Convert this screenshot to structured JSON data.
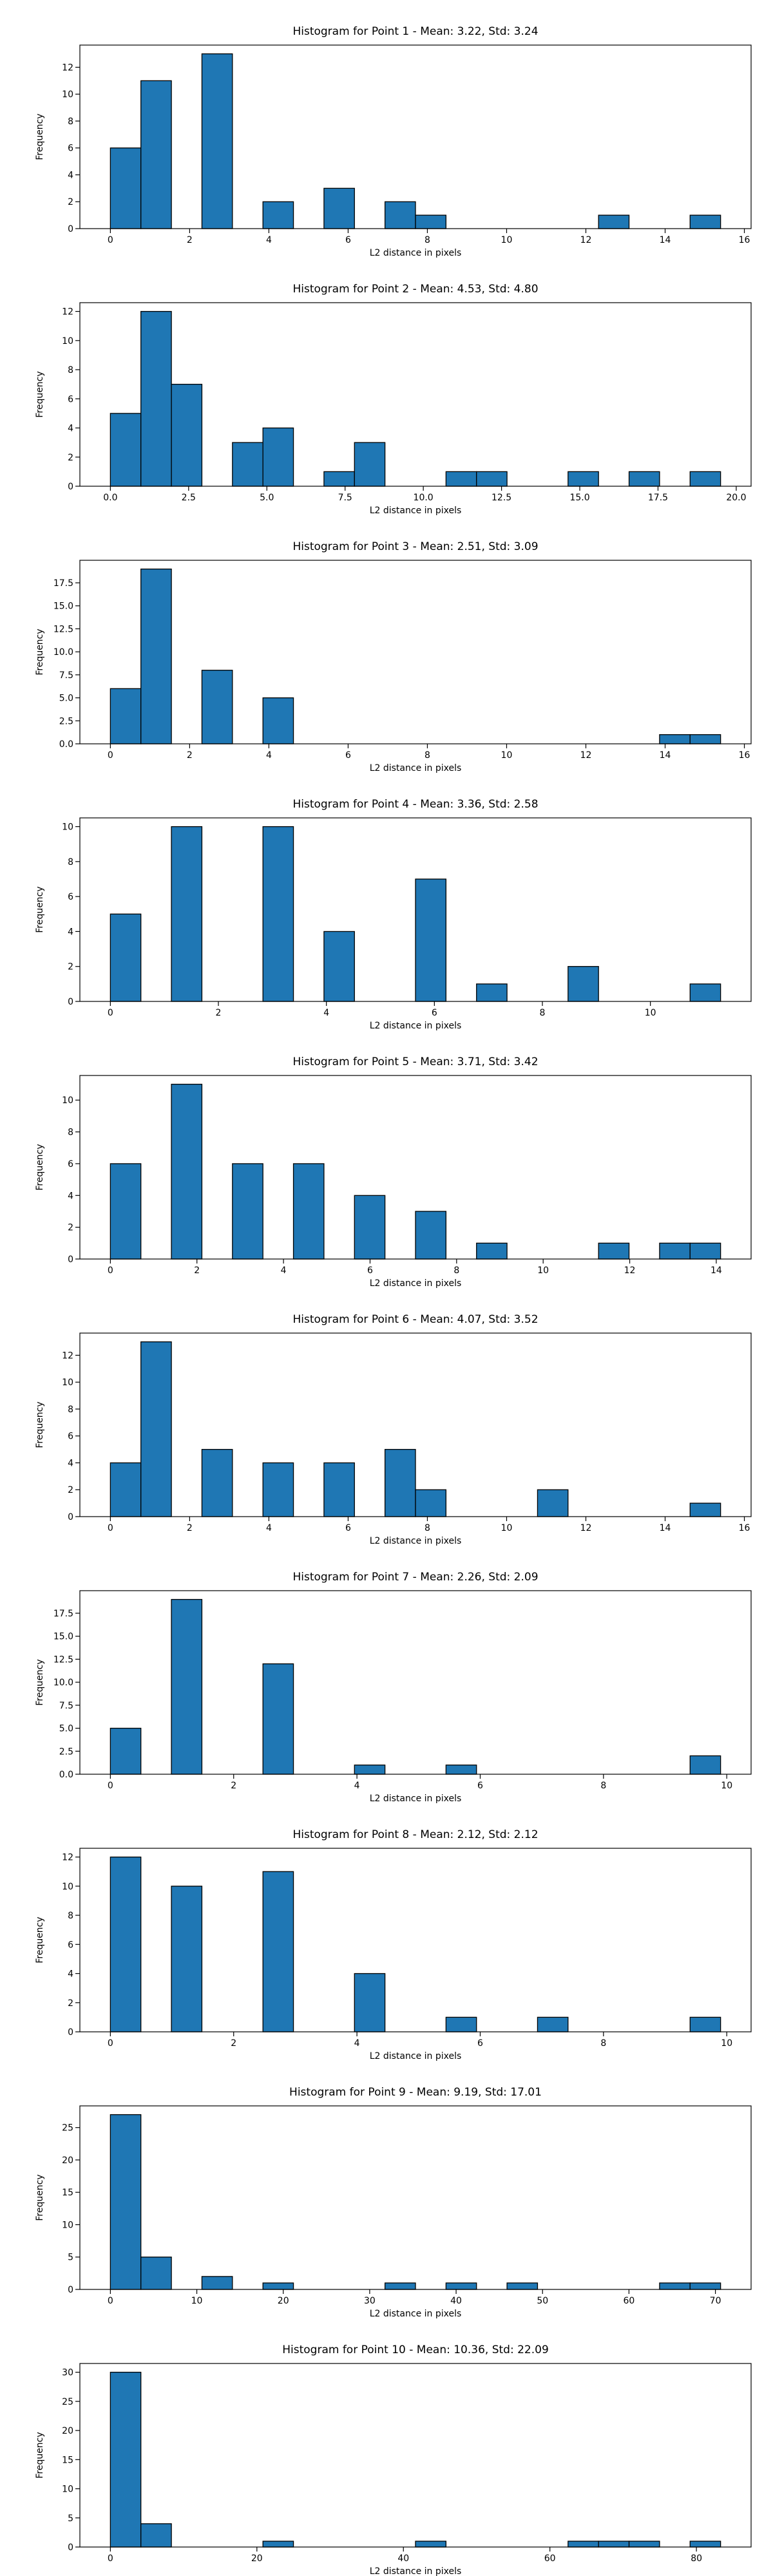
{
  "chart_data": [
    {
      "type": "histogram",
      "title": "Histogram for Point 1 - Mean: 3.22, Std: 3.24",
      "x_label": "L2 distance in pixels",
      "y_label": "Frequency",
      "color": "#1f77b4",
      "bins": [
        0,
        0.77,
        1.54,
        2.31,
        3.08,
        3.85,
        4.62,
        5.39,
        6.16,
        6.93,
        7.7,
        8.47,
        9.24,
        10.01,
        10.78,
        11.55,
        12.32,
        13.09,
        13.86,
        14.63,
        15.4
      ],
      "values": [
        6,
        11,
        0,
        13,
        0,
        2,
        0,
        3,
        0,
        2,
        1,
        0,
        0,
        0,
        0,
        0,
        1,
        0,
        0,
        1
      ],
      "xlim": [
        -0.77,
        16.17
      ],
      "xticks": [
        0,
        2,
        4,
        6,
        8,
        10,
        12,
        14,
        16
      ],
      "ylim": [
        0,
        13.65
      ],
      "yticks": [
        0,
        2,
        4,
        6,
        8,
        10,
        12
      ]
    },
    {
      "type": "histogram",
      "title": "Histogram for Point 2 - Mean: 4.53, Std: 4.80",
      "x_label": "L2 distance in pixels",
      "y_label": "Frequency",
      "color": "#1f77b4",
      "bins": [
        0,
        0.975,
        1.95,
        2.925,
        3.9,
        4.875,
        5.85,
        6.825,
        7.8,
        8.775,
        9.75,
        10.725,
        11.7,
        12.675,
        13.65,
        14.625,
        15.6,
        16.575,
        17.55,
        18.525,
        19.5
      ],
      "values": [
        5,
        12,
        7,
        0,
        3,
        4,
        0,
        1,
        3,
        0,
        0,
        1,
        1,
        0,
        0,
        1,
        0,
        1,
        0,
        1
      ],
      "xlim": [
        -0.975,
        20.475
      ],
      "xticks": [
        {
          "value": 0,
          "label": "0.0"
        },
        {
          "value": 2.5,
          "label": "2.5"
        },
        {
          "value": 5,
          "label": "5.0"
        },
        {
          "value": 7.5,
          "label": "7.5"
        },
        {
          "value": 10,
          "label": "10.0"
        },
        {
          "value": 12.5,
          "label": "12.5"
        },
        {
          "value": 15,
          "label": "15.0"
        },
        {
          "value": 17.5,
          "label": "17.5"
        },
        {
          "value": 20,
          "label": "20.0"
        }
      ],
      "ylim": [
        0,
        12.6
      ],
      "yticks": [
        0,
        2,
        4,
        6,
        8,
        10,
        12
      ]
    },
    {
      "type": "histogram",
      "title": "Histogram for Point 3 - Mean: 2.51, Std: 3.09",
      "x_label": "L2 distance in pixels",
      "y_label": "Frequency",
      "color": "#1f77b4",
      "bins": [
        0,
        0.77,
        1.54,
        2.31,
        3.08,
        3.85,
        4.62,
        5.39,
        6.16,
        6.93,
        7.7,
        8.47,
        9.24,
        10.01,
        10.78,
        11.55,
        12.32,
        13.09,
        13.86,
        14.63,
        15.4
      ],
      "values": [
        6,
        19,
        0,
        8,
        0,
        5,
        0,
        0,
        0,
        0,
        0,
        0,
        0,
        0,
        0,
        0,
        0,
        0,
        1,
        1
      ],
      "xlim": [
        -0.77,
        16.17
      ],
      "xticks": [
        0,
        2,
        4,
        6,
        8,
        10,
        12,
        14,
        16
      ],
      "ylim": [
        0,
        19.95
      ],
      "yticks": [
        {
          "value": 0,
          "label": "0.0"
        },
        {
          "value": 2.5,
          "label": "2.5"
        },
        {
          "value": 5,
          "label": "5.0"
        },
        {
          "value": 7.5,
          "label": "7.5"
        },
        {
          "value": 10,
          "label": "10.0"
        },
        {
          "value": 12.5,
          "label": "12.5"
        },
        {
          "value": 15,
          "label": "15.0"
        },
        {
          "value": 17.5,
          "label": "17.5"
        }
      ]
    },
    {
      "type": "histogram",
      "title": "Histogram for Point 4 - Mean: 3.36, Std: 2.58",
      "x_label": "L2 distance in pixels",
      "y_label": "Frequency",
      "color": "#1f77b4",
      "bins": [
        0,
        0.565,
        1.13,
        1.695,
        2.26,
        2.825,
        3.39,
        3.955,
        4.52,
        5.085,
        5.65,
        6.215,
        6.78,
        7.345,
        7.91,
        8.475,
        9.04,
        9.605,
        10.17,
        10.735,
        11.3
      ],
      "values": [
        5,
        0,
        10,
        0,
        0,
        10,
        0,
        4,
        0,
        0,
        7,
        0,
        1,
        0,
        0,
        2,
        0,
        0,
        0,
        1
      ],
      "xlim": [
        -0.565,
        11.865
      ],
      "xticks": [
        0,
        2,
        4,
        6,
        8,
        10
      ],
      "ylim": [
        0,
        10.5
      ],
      "yticks": [
        0,
        2,
        4,
        6,
        8,
        10
      ]
    },
    {
      "type": "histogram",
      "title": "Histogram for Point 5 - Mean: 3.71, Std: 3.42",
      "x_label": "L2 distance in pixels",
      "y_label": "Frequency",
      "color": "#1f77b4",
      "bins": [
        0,
        0.705,
        1.41,
        2.115,
        2.82,
        3.525,
        4.23,
        4.935,
        5.64,
        6.345,
        7.05,
        7.755,
        8.46,
        9.165,
        9.87,
        10.575,
        11.28,
        11.985,
        12.69,
        13.395,
        14.1
      ],
      "values": [
        6,
        0,
        11,
        0,
        6,
        0,
        6,
        0,
        4,
        0,
        3,
        0,
        1,
        0,
        0,
        0,
        1,
        0,
        1,
        1
      ],
      "xlim": [
        -0.705,
        14.805
      ],
      "xticks": [
        0,
        2,
        4,
        6,
        8,
        10,
        12,
        14
      ],
      "ylim": [
        0,
        11.55
      ],
      "yticks": [
        0,
        2,
        4,
        6,
        8,
        10
      ]
    },
    {
      "type": "histogram",
      "title": "Histogram for Point 6 - Mean: 4.07, Std: 3.52",
      "x_label": "L2 distance in pixels",
      "y_label": "Frequency",
      "color": "#1f77b4",
      "bins": [
        0,
        0.77,
        1.54,
        2.31,
        3.08,
        3.85,
        4.62,
        5.39,
        6.16,
        6.93,
        7.7,
        8.47,
        9.24,
        10.01,
        10.78,
        11.55,
        12.32,
        13.09,
        13.86,
        14.63,
        15.4
      ],
      "values": [
        4,
        13,
        0,
        5,
        0,
        4,
        0,
        4,
        0,
        5,
        2,
        0,
        0,
        0,
        2,
        0,
        0,
        0,
        0,
        1
      ],
      "xlim": [
        -0.77,
        16.17
      ],
      "xticks": [
        0,
        2,
        4,
        6,
        8,
        10,
        12,
        14,
        16
      ],
      "ylim": [
        0,
        13.65
      ],
      "yticks": [
        0,
        2,
        4,
        6,
        8,
        10,
        12
      ]
    },
    {
      "type": "histogram",
      "title": "Histogram for Point 7 - Mean: 2.26, Std: 2.09",
      "x_label": "L2 distance in pixels",
      "y_label": "Frequency",
      "color": "#1f77b4",
      "bins": [
        0,
        0.495,
        0.99,
        1.485,
        1.98,
        2.475,
        2.97,
        3.465,
        3.96,
        4.455,
        4.95,
        5.445,
        5.94,
        6.435,
        6.93,
        7.425,
        7.92,
        8.415,
        8.91,
        9.405,
        9.9
      ],
      "values": [
        5,
        0,
        19,
        0,
        0,
        12,
        0,
        0,
        1,
        0,
        0,
        1,
        0,
        0,
        0,
        0,
        0,
        0,
        0,
        2
      ],
      "xlim": [
        -0.495,
        10.395
      ],
      "xticks": [
        0,
        2,
        4,
        6,
        8,
        10
      ],
      "ylim": [
        0,
        19.95
      ],
      "yticks": [
        {
          "value": 0,
          "label": "0.0"
        },
        {
          "value": 2.5,
          "label": "2.5"
        },
        {
          "value": 5,
          "label": "5.0"
        },
        {
          "value": 7.5,
          "label": "7.5"
        },
        {
          "value": 10,
          "label": "10.0"
        },
        {
          "value": 12.5,
          "label": "12.5"
        },
        {
          "value": 15,
          "label": "15.0"
        },
        {
          "value": 17.5,
          "label": "17.5"
        }
      ]
    },
    {
      "type": "histogram",
      "title": "Histogram for Point 8 - Mean: 2.12, Std: 2.12",
      "x_label": "L2 distance in pixels",
      "y_label": "Frequency",
      "color": "#1f77b4",
      "bins": [
        0,
        0.495,
        0.99,
        1.485,
        1.98,
        2.475,
        2.97,
        3.465,
        3.96,
        4.455,
        4.95,
        5.445,
        5.94,
        6.435,
        6.93,
        7.425,
        7.92,
        8.415,
        8.91,
        9.405,
        9.9
      ],
      "values": [
        12,
        0,
        10,
        0,
        0,
        11,
        0,
        0,
        4,
        0,
        0,
        1,
        0,
        0,
        1,
        0,
        0,
        0,
        0,
        1
      ],
      "xlim": [
        -0.495,
        10.395
      ],
      "xticks": [
        0,
        2,
        4,
        6,
        8,
        10
      ],
      "ylim": [
        0,
        12.6
      ],
      "yticks": [
        0,
        2,
        4,
        6,
        8,
        10,
        12
      ]
    },
    {
      "type": "histogram",
      "title": "Histogram for Point 9 - Mean: 9.19, Std: 17.01",
      "x_label": "L2 distance in pixels",
      "y_label": "Frequency",
      "color": "#1f77b4",
      "bins": [
        0,
        3.53,
        7.06,
        10.59,
        14.12,
        17.65,
        21.18,
        24.71,
        28.24,
        31.77,
        35.3,
        38.83,
        42.36,
        45.89,
        49.42,
        52.95,
        56.48,
        60.01,
        63.54,
        67.07,
        70.6
      ],
      "values": [
        27,
        5,
        0,
        2,
        0,
        1,
        0,
        0,
        0,
        1,
        0,
        1,
        0,
        1,
        0,
        0,
        0,
        0,
        1,
        1
      ],
      "xlim": [
        -3.53,
        74.13
      ],
      "xticks": [
        0,
        10,
        20,
        30,
        40,
        50,
        60,
        70
      ],
      "ylim": [
        0,
        28.35
      ],
      "yticks": [
        0,
        5,
        10,
        15,
        20,
        25
      ]
    },
    {
      "type": "histogram",
      "title": "Histogram for Point 10 - Mean: 10.36, Std: 22.09",
      "x_label": "L2 distance in pixels",
      "y_label": "Frequency",
      "color": "#1f77b4",
      "bins": [
        0,
        4.165,
        8.33,
        12.495,
        16.66,
        20.825,
        24.99,
        29.155,
        33.32,
        37.485,
        41.65,
        45.815,
        49.98,
        54.145,
        58.31,
        62.475,
        66.64,
        70.805,
        74.97,
        79.135,
        83.3
      ],
      "values": [
        30,
        4,
        0,
        0,
        0,
        1,
        0,
        0,
        0,
        0,
        1,
        0,
        0,
        0,
        0,
        1,
        1,
        1,
        0,
        1
      ],
      "xlim": [
        -4.165,
        87.465
      ],
      "xticks": [
        0,
        20,
        40,
        60,
        80
      ],
      "ylim": [
        0,
        31.5
      ],
      "yticks": [
        0,
        5,
        10,
        15,
        20,
        25,
        30
      ]
    }
  ]
}
